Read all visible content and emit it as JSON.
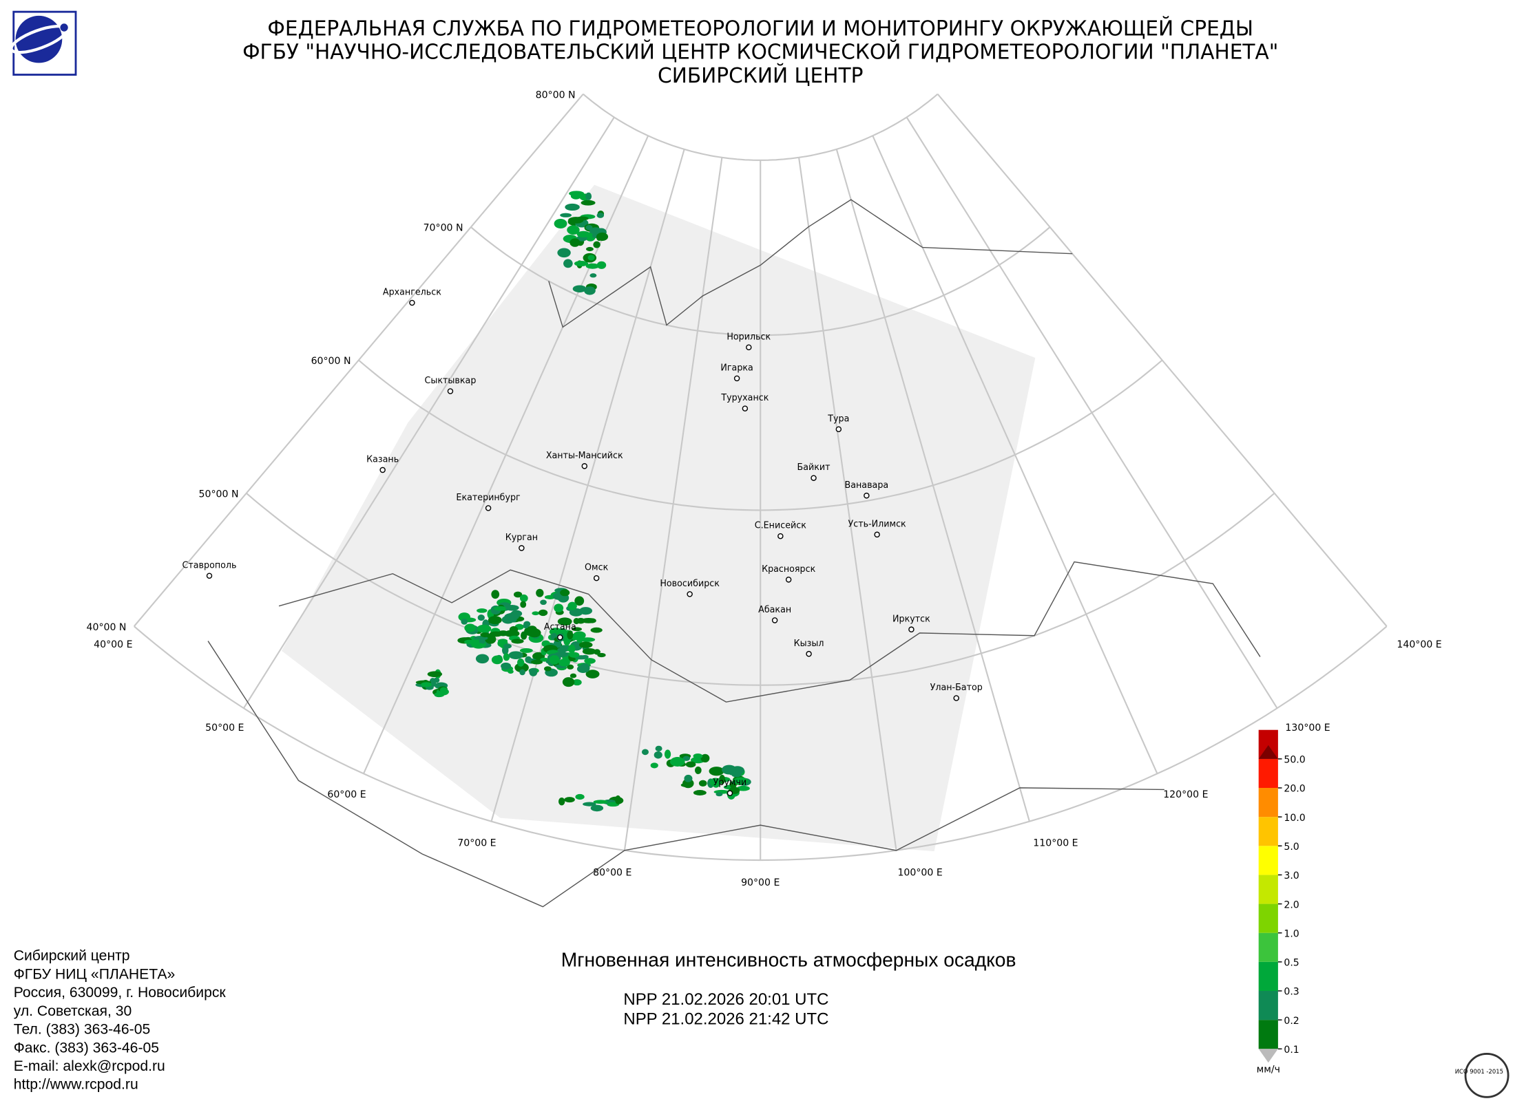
{
  "header": {
    "lines": [
      "ФЕДЕРАЛЬНАЯ СЛУЖБА ПО ГИДРОМЕТЕОРОЛОГИИ И МОНИТОРИНГУ ОКРУЖАЮЩЕЙ СРЕДЫ",
      "ФГБУ \"НАУЧНО-ИССЛЕДОВАТЕЛЬСКИЙ ЦЕНТР КОСМИЧЕСКОЙ ГИДРОМЕТЕОРОЛОГИИ \"ПЛАНЕТА\"",
      "СИБИРСКИЙ ЦЕНТР"
    ]
  },
  "map": {
    "lat_labels": [
      "80°00 N",
      "70°00 N",
      "60°00 N",
      "50°00 N",
      "40°00 N"
    ],
    "lon_labels": [
      "40°00 E",
      "50°00 E",
      "60°00 E",
      "70°00 E",
      "80°00 E",
      "90°00 E",
      "100°00 E",
      "110°00 E",
      "120°00 E",
      "130°00 E",
      "140°00 E"
    ],
    "cities": [
      "Архангельск",
      "Сыктывкар",
      "Казань",
      "Ставрополь",
      "Екатеринбург",
      "Курган",
      "Ханты-Мансийск",
      "Омск",
      "Новосибирск",
      "Астана",
      "Норильск",
      "Игарка",
      "Туруханск",
      "Тура",
      "Байкит",
      "С.Енисейск",
      "Ванавара",
      "Усть-Илимск",
      "Красноярск",
      "Абакан",
      "Кызыл",
      "Иркутск",
      "Улан-Батор",
      "Урумчи"
    ]
  },
  "legend": {
    "levels": [
      "0.1",
      "0.2",
      "0.3",
      "0.5",
      "1.0",
      "2.0",
      "3.0",
      "5.0",
      "10.0",
      "20.0",
      "50.0"
    ],
    "colors": [
      "#007a10",
      "#0f8a55",
      "#00a83a",
      "#3cc43c",
      "#7ed400",
      "#c4e800",
      "#ffff00",
      "#ffc400",
      "#ff8c00",
      "#ff1a00",
      "#c40000"
    ],
    "over_color": "#7a0000",
    "under_color": "#bbbbbb",
    "unit": "мм/ч"
  },
  "product": {
    "title": "Мгновенная интенсивность атмосферных осадков",
    "passes": [
      "NPP 21.02.2026  20:01 UTC",
      "NPP 21.02.2026  21:42 UTC"
    ]
  },
  "contacts": [
    "Сибирский центр",
    "ФГБУ НИЦ «ПЛАНЕТА»",
    "Россия, 630099, г. Новосибирск",
    "ул. Советская, 30",
    "Тел. (383) 363-46-05",
    "Факс. (383) 363-46-05",
    "E-mail: alexk@rcpod.ru",
    "http://www.rcpod.ru"
  ],
  "stamp": "ИСО 9001 -2015"
}
